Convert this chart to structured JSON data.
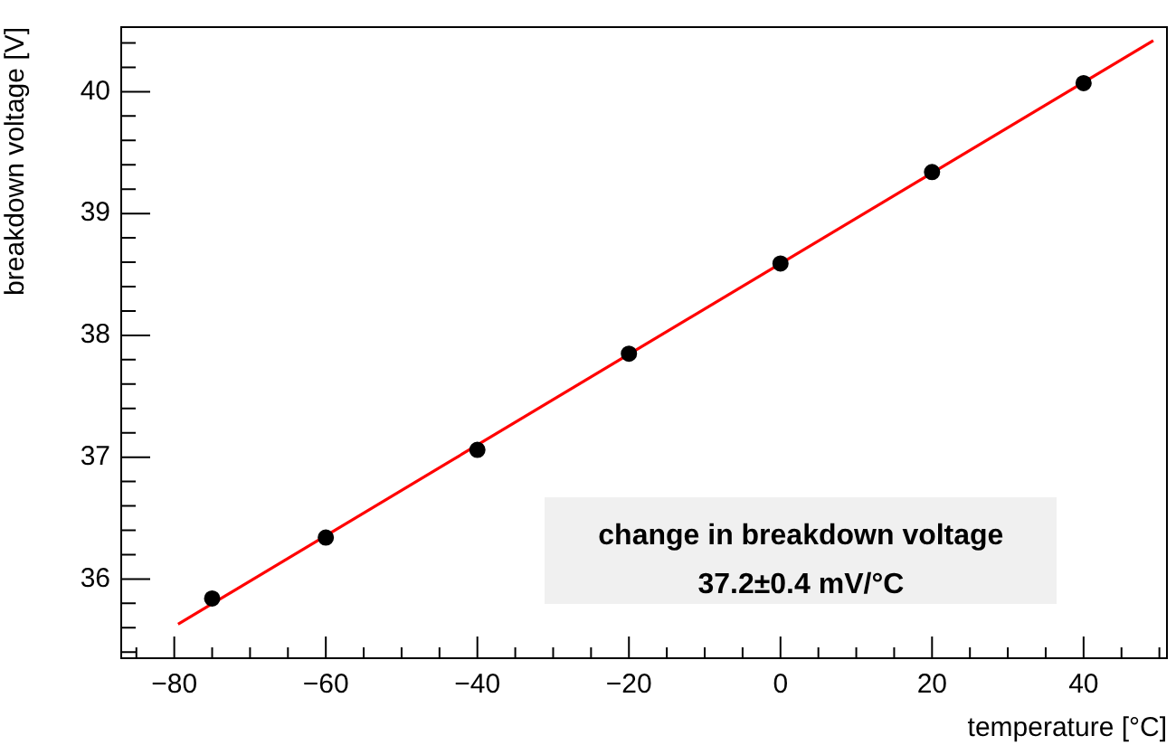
{
  "chart_data": {
    "type": "scatter",
    "xlabel": "temperature [°C]",
    "ylabel": "breakdown voltage [V]",
    "xlim": [
      -87,
      51
    ],
    "ylim": [
      35.35,
      40.53
    ],
    "xticks": [
      {
        "value": -85,
        "label": null
      },
      {
        "value": -80,
        "label": "−80"
      },
      {
        "value": -75,
        "label": null
      },
      {
        "value": -70,
        "label": null
      },
      {
        "value": -65,
        "label": null
      },
      {
        "value": -60,
        "label": "−60"
      },
      {
        "value": -55,
        "label": null
      },
      {
        "value": -50,
        "label": null
      },
      {
        "value": -45,
        "label": null
      },
      {
        "value": -40,
        "label": "−40"
      },
      {
        "value": -35,
        "label": null
      },
      {
        "value": -30,
        "label": null
      },
      {
        "value": -25,
        "label": null
      },
      {
        "value": -20,
        "label": "−20"
      },
      {
        "value": -15,
        "label": null
      },
      {
        "value": -10,
        "label": null
      },
      {
        "value": -5,
        "label": null
      },
      0,
      {
        "value": 5,
        "label": null
      },
      {
        "value": 10,
        "label": null
      },
      {
        "value": 15,
        "label": null
      },
      20,
      {
        "value": 25,
        "label": null
      },
      {
        "value": 30,
        "label": null
      },
      {
        "value": 35,
        "label": null
      },
      40,
      {
        "value": 45,
        "label": null
      },
      {
        "value": 50,
        "label": null
      }
    ],
    "yticks": [
      {
        "value": 35.4,
        "label": null
      },
      {
        "value": 35.6,
        "label": null
      },
      {
        "value": 35.8,
        "label": null
      },
      36,
      {
        "value": 36.2,
        "label": null
      },
      {
        "value": 36.4,
        "label": null
      },
      {
        "value": 36.6,
        "label": null
      },
      {
        "value": 36.8,
        "label": null
      },
      37,
      {
        "value": 37.2,
        "label": null
      },
      {
        "value": 37.4,
        "label": null
      },
      {
        "value": 37.6,
        "label": null
      },
      {
        "value": 37.8,
        "label": null
      },
      38,
      {
        "value": 38.2,
        "label": null
      },
      {
        "value": 38.4,
        "label": null
      },
      {
        "value": 38.6,
        "label": null
      },
      {
        "value": 38.8,
        "label": null
      },
      39,
      {
        "value": 39.2,
        "label": null
      },
      {
        "value": 39.4,
        "label": null
      },
      {
        "value": 39.6,
        "label": null
      },
      {
        "value": 39.8,
        "label": null
      },
      40,
      {
        "value": 40.2,
        "label": null
      },
      {
        "value": 40.4,
        "label": null
      }
    ],
    "series": [
      {
        "marker": "circle",
        "color": "#000000",
        "x": [
          -75,
          -60,
          -40,
          -20,
          0,
          20,
          40
        ],
        "values": [
          35.84,
          36.34,
          37.06,
          37.85,
          38.59,
          39.34,
          40.07
        ]
      },
      {
        "type": "line",
        "color": "#ff0000",
        "x": [
          -79.5,
          49.2
        ],
        "values": [
          35.63,
          40.42
        ]
      }
    ],
    "grid": false,
    "legend": false,
    "annotations": [
      "change in breakdown voltage",
      "37.2±0.4 mV/°C"
    ]
  }
}
